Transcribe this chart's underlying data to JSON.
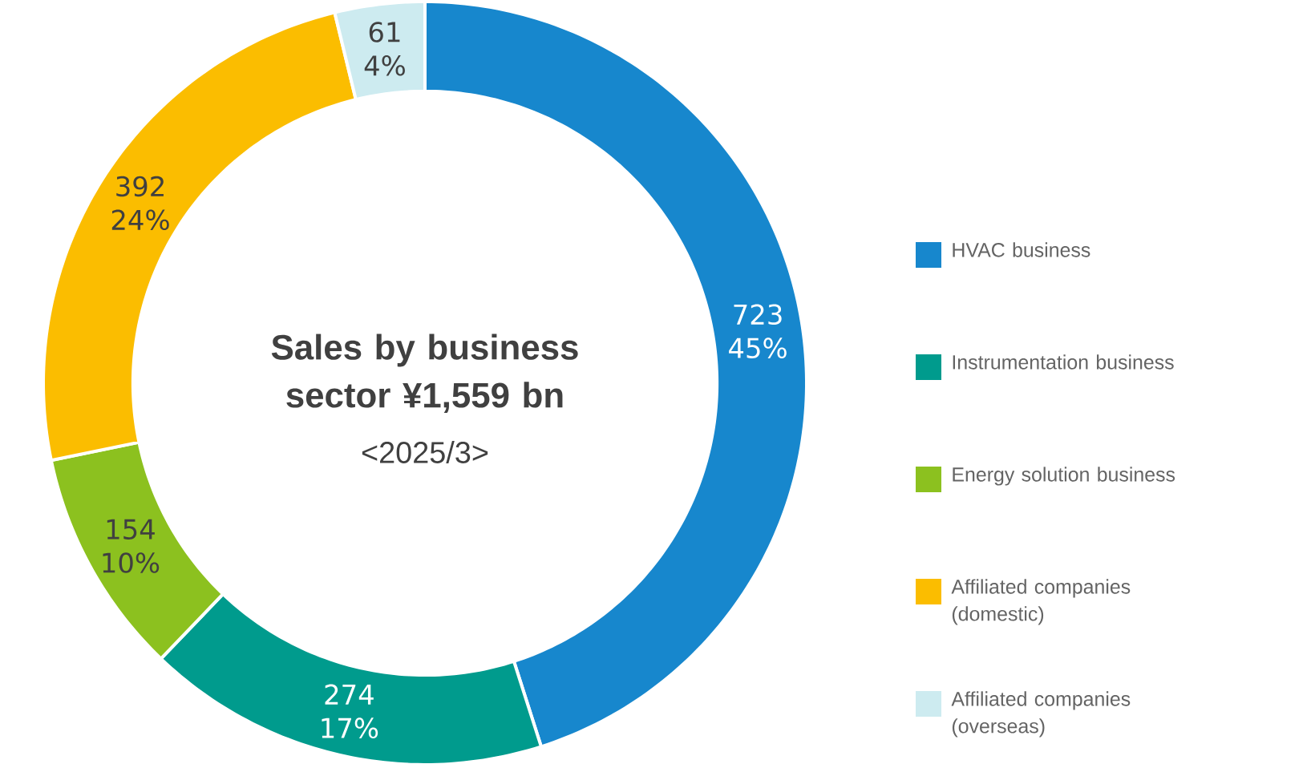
{
  "chart_data": {
    "type": "donut",
    "title": "Sales by business sector ¥1,559 bn",
    "subtitle": "<2025/3>",
    "categories": [
      "HVAC business",
      "Instrumentation business",
      "Energy solution business",
      "Affiliated companies (domestic)",
      "Affiliated companies (overseas)"
    ],
    "values": [
      723,
      274,
      154,
      392,
      61
    ],
    "colors": [
      "#1787cd",
      "#009b8d",
      "#8cc11f",
      "#fbbd00",
      "#cdebf0"
    ],
    "data_labels": true,
    "value_labels": [
      "723 45%",
      "274 17%",
      "154 10%",
      "392 24%",
      "61 4%"
    ],
    "legend": "right"
  }
}
